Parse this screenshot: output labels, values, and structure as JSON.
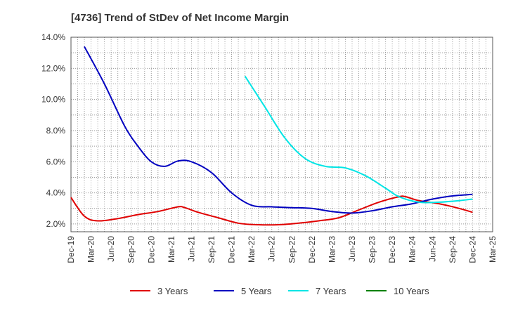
{
  "chart_data": {
    "type": "line",
    "title": "[4736]  Trend of StDev of Net Income Margin",
    "xlabel": "",
    "ylabel": "",
    "x_ticks": [
      "Dec-19",
      "Mar-20",
      "Jun-20",
      "Sep-20",
      "Dec-20",
      "Mar-21",
      "Jun-21",
      "Sep-21",
      "Dec-21",
      "Mar-22",
      "Jun-22",
      "Sep-22",
      "Dec-22",
      "Mar-23",
      "Jun-23",
      "Sep-23",
      "Dec-23",
      "Mar-24",
      "Jun-24",
      "Sep-24",
      "Dec-24",
      "Mar-25"
    ],
    "y_ticks": [
      "2.0%",
      "4.0%",
      "6.0%",
      "8.0%",
      "10.0%",
      "12.0%",
      "14.0%"
    ],
    "ylim": [
      1.5,
      14.0
    ],
    "grid": true,
    "legend_position": "bottom",
    "series": [
      {
        "name": "3 Years",
        "color": "#e00000",
        "points": [
          [
            "Dec-19",
            3.7
          ],
          [
            "Feb-20",
            2.5
          ],
          [
            "Apr-20",
            2.2
          ],
          [
            "Jul-20",
            2.35
          ],
          [
            "Oct-20",
            2.6
          ],
          [
            "Jan-21",
            2.8
          ],
          [
            "Apr-21",
            3.1
          ],
          [
            "May-21",
            3.05
          ],
          [
            "Jul-21",
            2.75
          ],
          [
            "Oct-21",
            2.4
          ],
          [
            "Jan-22",
            2.05
          ],
          [
            "Apr-22",
            1.95
          ],
          [
            "Jul-22",
            1.95
          ],
          [
            "Oct-22",
            2.05
          ],
          [
            "Jan-23",
            2.2
          ],
          [
            "Apr-23",
            2.4
          ],
          [
            "Jul-23",
            2.9
          ],
          [
            "Oct-23",
            3.4
          ],
          [
            "Jan-24",
            3.75
          ],
          [
            "Feb-24",
            3.75
          ],
          [
            "Apr-24",
            3.5
          ],
          [
            "Jul-24",
            3.3
          ],
          [
            "Oct-24",
            3.0
          ],
          [
            "Dec-24",
            2.75
          ]
        ]
      },
      {
        "name": "5 Years",
        "color": "#0000c0",
        "points": [
          [
            "Feb-20",
            13.4
          ],
          [
            "May-20",
            11.0
          ],
          [
            "Aug-20",
            8.3
          ],
          [
            "Oct-20",
            7.0
          ],
          [
            "Dec-20",
            6.0
          ],
          [
            "Feb-21",
            5.7
          ],
          [
            "Apr-21",
            6.05
          ],
          [
            "Jun-21",
            6.0
          ],
          [
            "Sep-21",
            5.3
          ],
          [
            "Dec-21",
            4.0
          ],
          [
            "Mar-22",
            3.2
          ],
          [
            "Jun-22",
            3.1
          ],
          [
            "Sep-22",
            3.05
          ],
          [
            "Dec-22",
            3.0
          ],
          [
            "Mar-23",
            2.8
          ],
          [
            "Jun-23",
            2.7
          ],
          [
            "Sep-23",
            2.85
          ],
          [
            "Dec-23",
            3.1
          ],
          [
            "Mar-24",
            3.3
          ],
          [
            "Jun-24",
            3.6
          ],
          [
            "Sep-24",
            3.8
          ],
          [
            "Dec-24",
            3.9
          ]
        ]
      },
      {
        "name": "7 Years",
        "color": "#00e5e5",
        "points": [
          [
            "Feb-22",
            11.5
          ],
          [
            "May-22",
            9.5
          ],
          [
            "Aug-22",
            7.5
          ],
          [
            "Nov-22",
            6.2
          ],
          [
            "Feb-23",
            5.7
          ],
          [
            "May-23",
            5.6
          ],
          [
            "Aug-23",
            5.1
          ],
          [
            "Nov-23",
            4.3
          ],
          [
            "Jan-24",
            3.75
          ],
          [
            "Apr-24",
            3.4
          ],
          [
            "Jul-24",
            3.4
          ],
          [
            "Oct-24",
            3.5
          ],
          [
            "Dec-24",
            3.6
          ]
        ]
      },
      {
        "name": "10 Years",
        "color": "#008000",
        "points": []
      }
    ]
  }
}
